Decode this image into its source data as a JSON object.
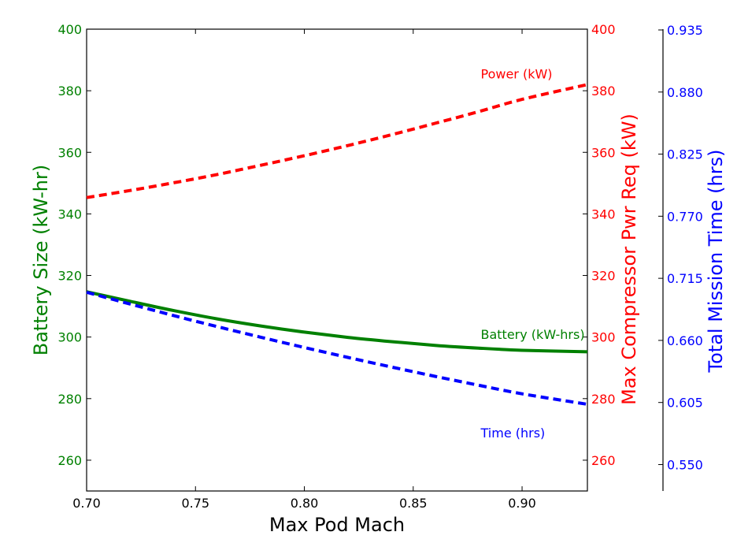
{
  "chart_data": {
    "type": "line",
    "xlabel": "Max Pod Mach",
    "xlim": [
      0.7,
      0.93
    ],
    "xticks": [
      0.7,
      0.75,
      0.8,
      0.85,
      0.9
    ],
    "xtick_labels": [
      "0.70",
      "0.75",
      "0.80",
      "0.85",
      "0.90"
    ],
    "axes": {
      "left": {
        "label": "Battery Size (kW-hr)",
        "ylim": [
          250,
          400
        ],
        "ticks": [
          260,
          280,
          300,
          320,
          340,
          360,
          380,
          400
        ],
        "tick_labels": [
          "260",
          "280",
          "300",
          "320",
          "340",
          "360",
          "380",
          "400"
        ],
        "color": "#008000"
      },
      "right": {
        "label": "Max Compressor Pwr Req (kW)",
        "ylim": [
          250,
          400
        ],
        "ticks": [
          260,
          280,
          300,
          320,
          340,
          360,
          380,
          400
        ],
        "tick_labels": [
          "260",
          "280",
          "300",
          "320",
          "340",
          "360",
          "380",
          "400"
        ],
        "color": "#ff0000"
      },
      "far_right": {
        "label": "Total Mission Time (hrs)",
        "ylim": [
          0.5266,
          0.9357
        ],
        "ticks": [
          0.55,
          0.605,
          0.66,
          0.715,
          0.77,
          0.825,
          0.88,
          0.935
        ],
        "tick_labels": [
          "0.550",
          "0.605",
          "0.660",
          "0.715",
          "0.770",
          "0.825",
          "0.880",
          "0.935"
        ],
        "color": "#0000ff"
      }
    },
    "series": [
      {
        "axis": "right",
        "color": "#ff0000",
        "style": "dashed",
        "x": [
          0.7,
          0.72,
          0.74,
          0.76,
          0.78,
          0.8,
          0.82,
          0.84,
          0.86,
          0.88,
          0.9,
          0.93
        ],
        "values": [
          345.3,
          347.6,
          350.1,
          352.8,
          355.8,
          358.9,
          362.2,
          365.7,
          369.4,
          373.2,
          377.2,
          382.0
        ]
      },
      {
        "axis": "left",
        "color": "#008000",
        "style": "solid",
        "x": [
          0.7,
          0.72,
          0.74,
          0.76,
          0.78,
          0.8,
          0.82,
          0.84,
          0.86,
          0.88,
          0.9,
          0.93
        ],
        "values": [
          314.7,
          311.6,
          308.6,
          305.9,
          303.6,
          301.6,
          299.9,
          298.5,
          297.3,
          296.4,
          295.7,
          295.2
        ]
      },
      {
        "axis": "far_right",
        "color": "#0000ff",
        "style": "dashed",
        "x": [
          0.7,
          0.72,
          0.74,
          0.76,
          0.78,
          0.8,
          0.82,
          0.84,
          0.86,
          0.88,
          0.9,
          0.93
        ],
        "values": [
          0.7027,
          0.6922,
          0.682,
          0.6722,
          0.6628,
          0.6537,
          0.6449,
          0.6364,
          0.6282,
          0.6203,
          0.6127,
          0.6034
        ]
      }
    ],
    "annotations": [
      {
        "text": "Power (kW)",
        "x": 0.881,
        "y": 385.5,
        "axis": "left",
        "color": "#ff0000"
      },
      {
        "text": "Battery (kW-hrs)",
        "x": 0.881,
        "y": 301.0,
        "axis": "left",
        "color": "#008000"
      },
      {
        "text": "Time (hrs)",
        "x": 0.881,
        "y": 269.0,
        "axis": "left",
        "color": "#0000ff"
      }
    ],
    "grid": false,
    "legend": "none"
  }
}
